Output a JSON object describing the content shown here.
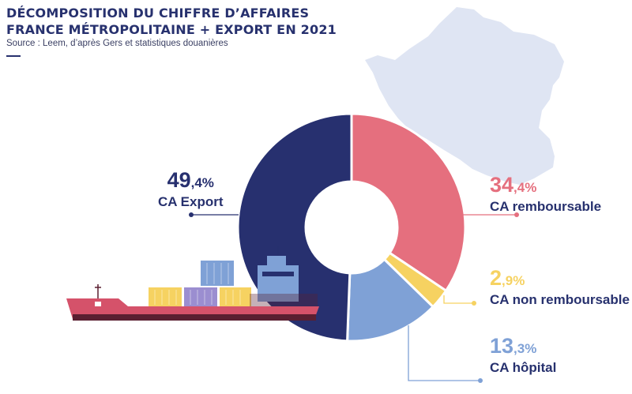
{
  "header": {
    "title_line1": "DÉCOMPOSITION DU CHIFFRE D’AFFAIRES",
    "title_line2": "FRANCE MÉTROPOLITAINE + EXPORT EN 2021",
    "source": "Source : Leem, d’après Gers et statistiques douanières"
  },
  "chart_data": {
    "type": "pie",
    "variant": "donut",
    "title": "DÉCOMPOSITION DU CHIFFRE D’AFFAIRES FRANCE MÉTROPOLITAINE + EXPORT EN 2021",
    "unit": "%",
    "slices": [
      {
        "key": "remb",
        "label": "CA remboursable",
        "value": 34.4,
        "int": "34",
        "dec": ",4%",
        "color": "#e56f7e"
      },
      {
        "key": "nonremb",
        "label": "CA non remboursable",
        "value": 2.9,
        "int": "2",
        "dec": ",9%",
        "color": "#f6d261"
      },
      {
        "key": "hop",
        "label": "CA hôpital",
        "value": 13.3,
        "int": "13",
        "dec": ",3%",
        "color": "#7fa1d6"
      },
      {
        "key": "export",
        "label": "CA Export",
        "value": 49.4,
        "int": "49",
        "dec": ",4%",
        "color": "#27306f"
      }
    ]
  },
  "colors": {
    "title": "#27316e",
    "map": "#dfe5f3",
    "hull_red": "#d5526a",
    "hull_dark": "#5a1f31"
  },
  "decor": {
    "map_icon": "france-map-icon",
    "ship_icon": "cargo-ship-icon"
  }
}
